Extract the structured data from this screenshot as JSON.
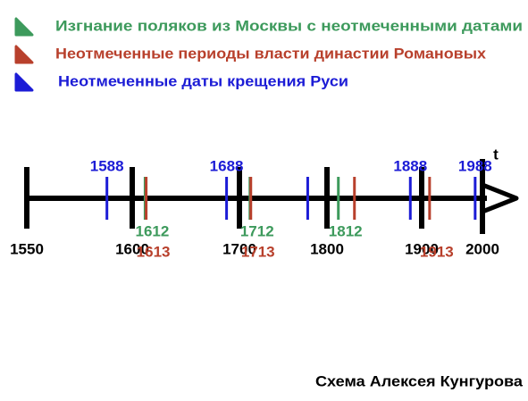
{
  "legend_note": null,
  "timeline": {
    "ticks": [
      1550,
      1600,
      1700,
      1800,
      1900,
      2000
    ],
    "axis_end_label": "t",
    "series": [
      {
        "name": "Изгнание поляков из Москвы с неотмеченными датами",
        "color": "#3d9a5c",
        "values": [
          1612,
          1712,
          1812
        ],
        "unlabeled_values": []
      },
      {
        "name": "Неотмеченные периоды власти династии Романовых",
        "color": "#b8402c",
        "values": [
          1613,
          1713,
          1913
        ],
        "unlabeled_values": [
          1829
        ]
      },
      {
        "name": "Неотмеченные даты крещения Руси",
        "color": "#1c1cd6",
        "values": [
          1588,
          1688,
          1888,
          1988
        ],
        "unlabeled_values": [
          1778
        ]
      }
    ]
  },
  "caption": "Схема Алексея Кунгурова"
}
